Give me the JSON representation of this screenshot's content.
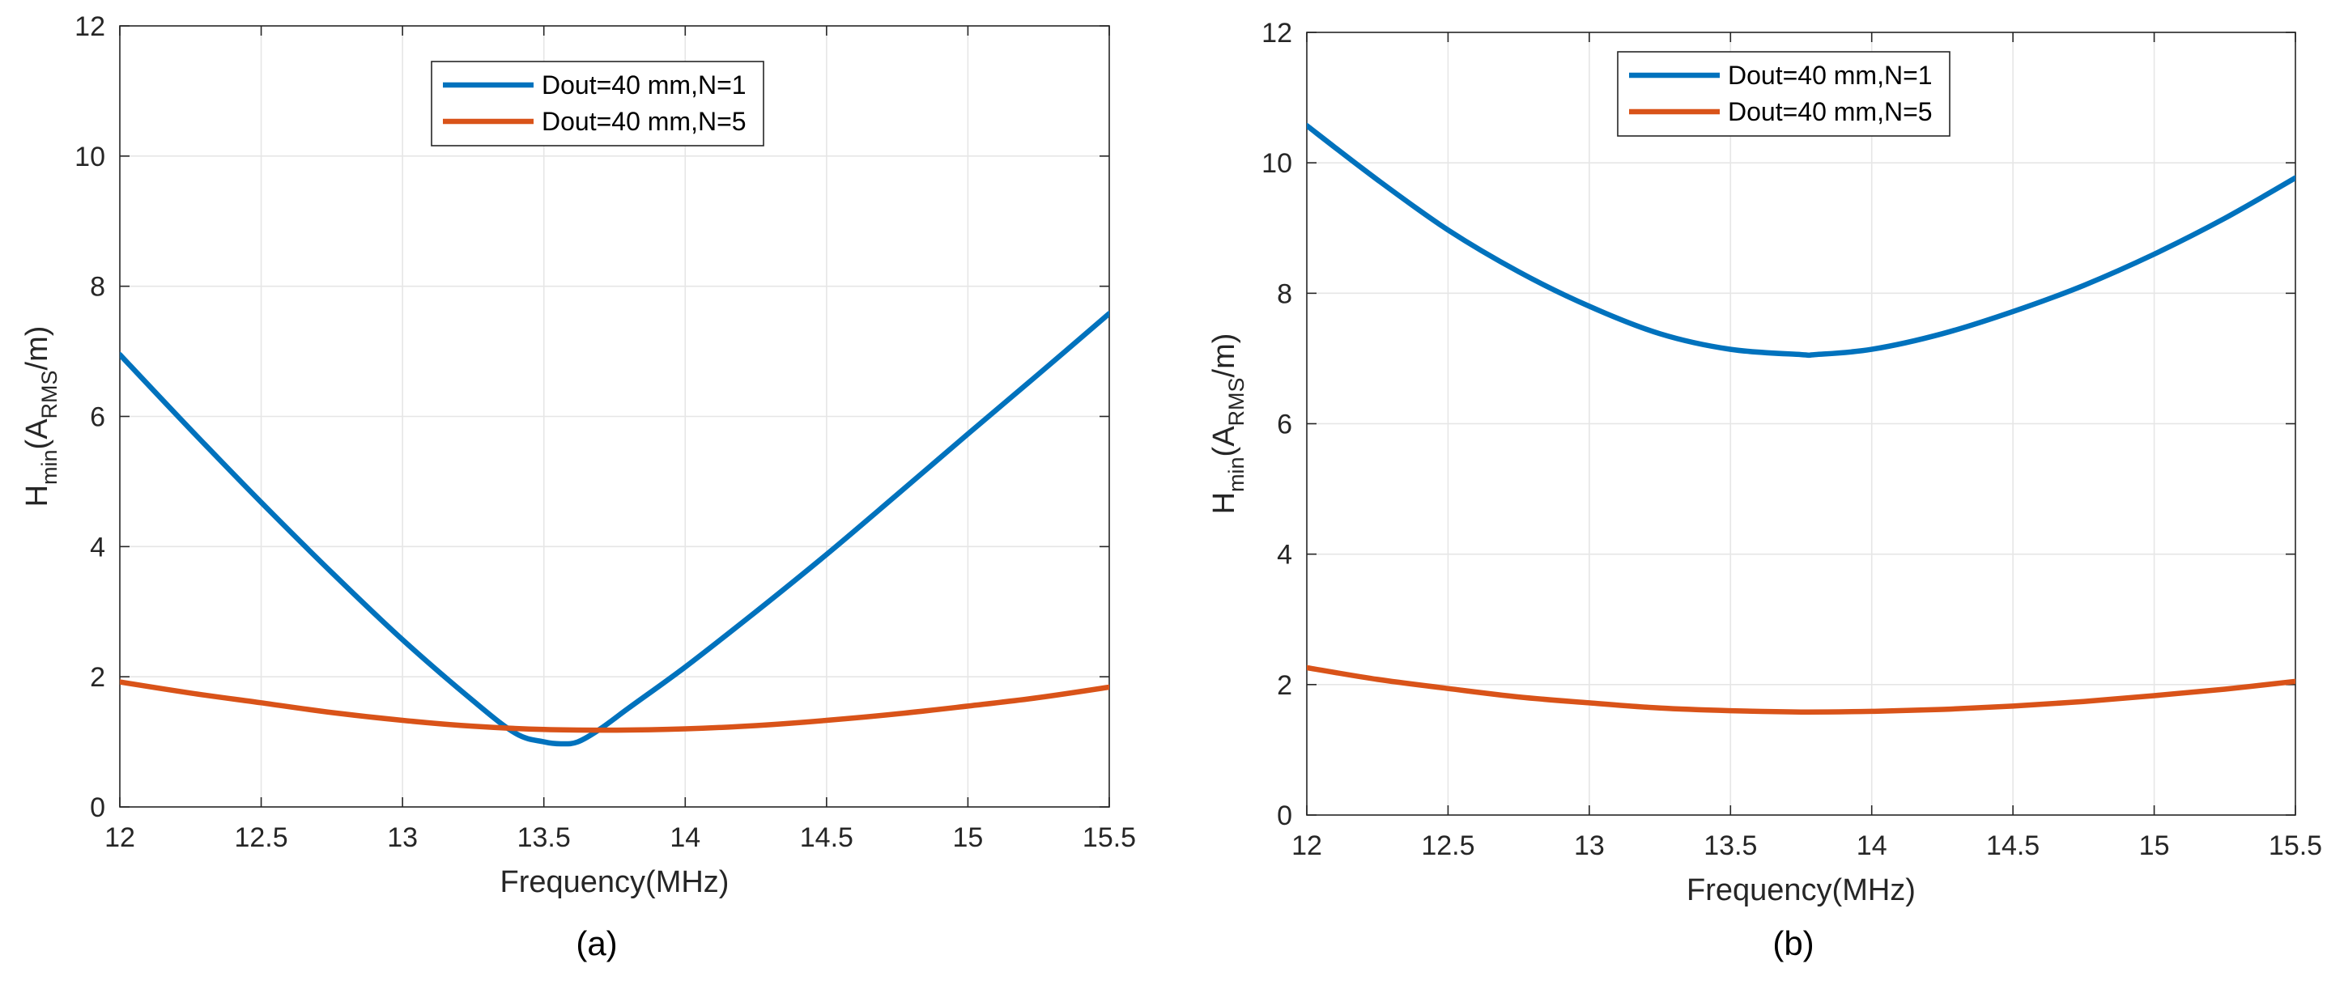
{
  "chart_data": [
    {
      "type": "line",
      "panel": "a",
      "caption": "(a)",
      "xlabel": "Frequency(MHz)",
      "ylabel": {
        "main": "H",
        "sub1": "min",
        "mid": "(A",
        "sub2": "RMS",
        "tail": "/m)"
      },
      "xlim": [
        12,
        15.5
      ],
      "ylim": [
        0,
        12
      ],
      "xticks": [
        12,
        12.5,
        13,
        13.5,
        14,
        14.5,
        15,
        15.5
      ],
      "xtick_labels": [
        "12",
        "12.5",
        "13",
        "13.5",
        "14",
        "14.5",
        "15",
        "15.5"
      ],
      "yticks": [
        0,
        2,
        4,
        6,
        8,
        10,
        12
      ],
      "ytick_labels": [
        "0",
        "2",
        "4",
        "6",
        "8",
        "10",
        "12"
      ],
      "grid": true,
      "legend_position": "top-center",
      "series": [
        {
          "name": "Dout=40 mm,N=1",
          "color": "#0072BD",
          "x": [
            12.0,
            12.25,
            12.5,
            12.75,
            13.0,
            13.25,
            13.4,
            13.5,
            13.56,
            13.62,
            13.7,
            13.8,
            14.0,
            14.25,
            14.5,
            14.75,
            15.0,
            15.25,
            15.5
          ],
          "y": [
            6.95,
            5.8,
            4.68,
            3.6,
            2.57,
            1.63,
            1.13,
            1.0,
            0.97,
            1.0,
            1.2,
            1.52,
            2.15,
            3.0,
            3.88,
            4.8,
            5.73,
            6.65,
            7.58
          ]
        },
        {
          "name": "Dout=40 mm,N=5",
          "color": "#D95319",
          "x": [
            12.0,
            12.25,
            12.5,
            12.75,
            13.0,
            13.25,
            13.5,
            13.75,
            14.0,
            14.25,
            14.5,
            14.75,
            15.0,
            15.25,
            15.5
          ],
          "y": [
            1.92,
            1.75,
            1.6,
            1.45,
            1.33,
            1.24,
            1.19,
            1.18,
            1.2,
            1.25,
            1.33,
            1.43,
            1.55,
            1.68,
            1.84
          ]
        }
      ]
    },
    {
      "type": "line",
      "panel": "b",
      "caption": "(b)",
      "xlabel": "Frequency(MHz)",
      "ylabel": {
        "main": "H",
        "sub1": "min",
        "mid": "(A",
        "sub2": "RMS",
        "tail": "/m)"
      },
      "xlim": [
        12,
        15.5
      ],
      "ylim": [
        0,
        12
      ],
      "xticks": [
        12,
        12.5,
        13,
        13.5,
        14,
        14.5,
        15,
        15.5
      ],
      "xtick_labels": [
        "12",
        "12.5",
        "13",
        "13.5",
        "14",
        "14.5",
        "15",
        "15.5"
      ],
      "yticks": [
        0,
        2,
        4,
        6,
        8,
        10,
        12
      ],
      "ytick_labels": [
        "0",
        "2",
        "4",
        "6",
        "8",
        "10",
        "12"
      ],
      "grid": true,
      "legend_position": "top-center",
      "series": [
        {
          "name": "Dout=40 mm,N=1",
          "color": "#0072BD",
          "x": [
            12.0,
            12.25,
            12.5,
            12.75,
            13.0,
            13.25,
            13.5,
            13.75,
            13.8,
            14.0,
            14.25,
            14.5,
            14.75,
            15.0,
            15.25,
            15.5
          ],
          "y": [
            10.57,
            9.74,
            8.97,
            8.33,
            7.8,
            7.38,
            7.14,
            7.06,
            7.06,
            7.14,
            7.38,
            7.72,
            8.12,
            8.6,
            9.15,
            9.77
          ]
        },
        {
          "name": "Dout=40 mm,N=5",
          "color": "#D95319",
          "x": [
            12.0,
            12.25,
            12.5,
            12.75,
            13.0,
            13.25,
            13.5,
            13.75,
            14.0,
            14.25,
            14.5,
            14.75,
            15.0,
            15.25,
            15.5
          ],
          "y": [
            2.26,
            2.08,
            1.94,
            1.81,
            1.72,
            1.64,
            1.6,
            1.58,
            1.59,
            1.62,
            1.67,
            1.74,
            1.83,
            1.93,
            2.05
          ]
        }
      ]
    }
  ]
}
